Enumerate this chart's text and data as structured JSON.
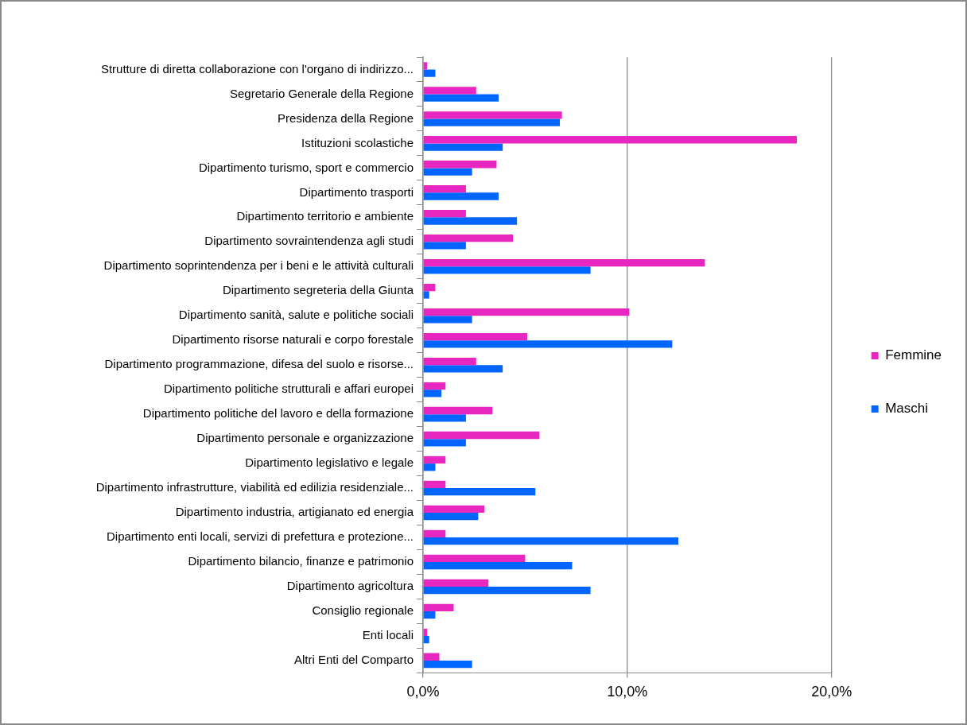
{
  "chart_data": {
    "type": "bar",
    "orientation": "horizontal",
    "categories": [
      "Strutture di diretta collaborazione con l'organo di indirizzo...",
      "Segretario Generale della Regione",
      "Presidenza della Regione",
      "Istituzioni scolastiche",
      "Dipartimento turismo, sport e commercio",
      "Dipartimento trasporti",
      "Dipartimento territorio e ambiente",
      "Dipartimento sovraintendenza agli studi",
      "Dipartimento soprintendenza per i beni e le attività culturali",
      "Dipartimento segreteria della Giunta",
      "Dipartimento sanità, salute e politiche sociali",
      "Dipartimento risorse naturali e corpo forestale",
      "Dipartimento programmazione, difesa del suolo e risorse...",
      "Dipartimento politiche strutturali e affari europei",
      "Dipartimento politiche del lavoro e della formazione",
      "Dipartimento personale e organizzazione",
      "Dipartimento legislativo e legale",
      "Dipartimento infrastrutture, viabilità ed edilizia residenziale...",
      "Dipartimento industria, artigianato ed energia",
      "Dipartimento enti locali, servizi di prefettura e protezione...",
      "Dipartimento bilancio, finanze e patrimonio",
      "Dipartimento agricoltura",
      "Consiglio regionale",
      "Enti locali",
      "Altri Enti del Comparto"
    ],
    "series": [
      {
        "name": "Femmine",
        "color": "#e727c0",
        "values": [
          0.2,
          2.6,
          6.8,
          18.3,
          3.6,
          2.1,
          2.1,
          4.4,
          13.8,
          0.6,
          10.1,
          5.1,
          2.6,
          1.1,
          3.4,
          5.7,
          1.1,
          1.1,
          3.0,
          1.1,
          5.0,
          3.2,
          1.5,
          0.2,
          0.8
        ]
      },
      {
        "name": "Maschi",
        "color": "#0066ff",
        "values": [
          0.6,
          3.7,
          6.7,
          3.9,
          2.4,
          3.7,
          4.6,
          2.1,
          8.2,
          0.3,
          2.4,
          12.2,
          3.9,
          0.9,
          2.1,
          2.1,
          0.6,
          5.5,
          2.7,
          12.5,
          7.3,
          8.2,
          0.6,
          0.3,
          2.4
        ]
      }
    ],
    "xlim": [
      0,
      20
    ],
    "xticks": [
      {
        "value": 0,
        "label": "0,0%"
      },
      {
        "value": 10,
        "label": "10,0%"
      },
      {
        "value": 20,
        "label": "20,0%"
      }
    ],
    "grid": "x",
    "legend": "right"
  }
}
